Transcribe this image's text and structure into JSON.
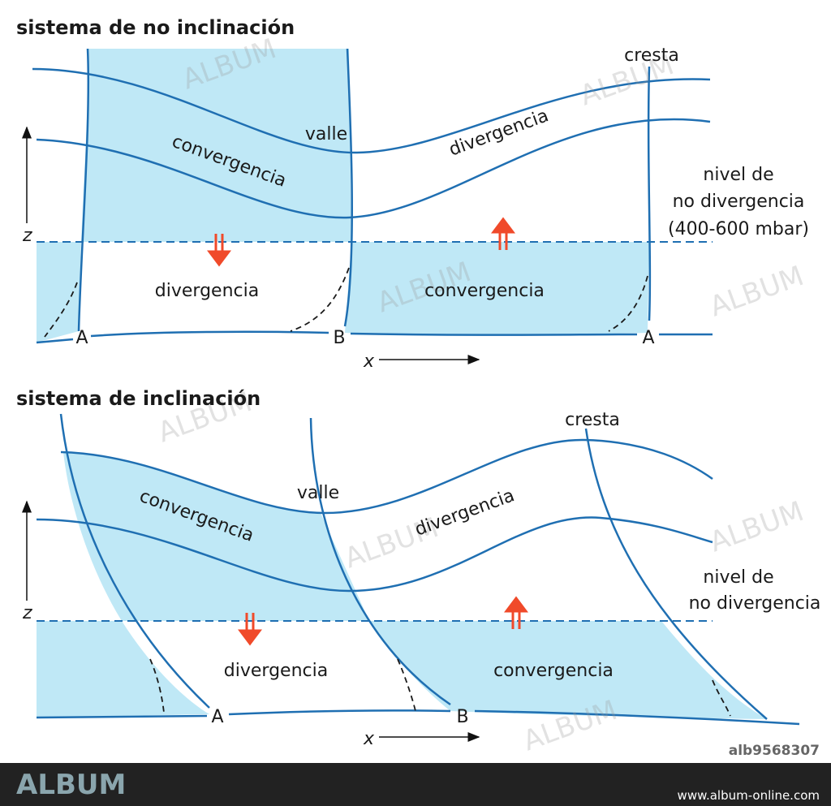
{
  "panels": [
    {
      "title": "sistema de no inclinación",
      "upper_convergence": "convergencia",
      "upper_divergence": "divergencia",
      "trough": "valle",
      "ridge": "cresta",
      "level_label": [
        "nivel de",
        "no divergencia",
        "(400-600 mbar)"
      ],
      "z_axis": "z",
      "x_axis": "x",
      "lower_divergence": "divergencia",
      "lower_convergence": "convergencia",
      "points": [
        "A",
        "B",
        "A"
      ]
    },
    {
      "title": "sistema de inclinación",
      "upper_convergence": "convergencia",
      "upper_divergence": "divergencia",
      "trough": "valle",
      "ridge": "cresta",
      "level_label": [
        "nivel de",
        "no divergencia"
      ],
      "z_axis": "z",
      "x_axis": "x",
      "lower_divergence": "divergencia",
      "lower_convergence": "convergencia",
      "points": [
        "A",
        "B"
      ]
    }
  ],
  "watermark": "ALBUM",
  "footer": {
    "logo": "ALBUM",
    "id": "alb9568307",
    "url": "www.album-online.com"
  }
}
